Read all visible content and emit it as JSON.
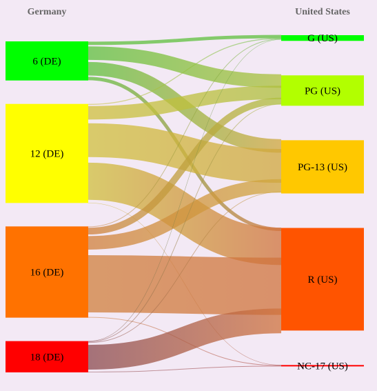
{
  "header": {
    "left": "Germany",
    "right": "United States"
  },
  "chart_data": {
    "type": "sankey",
    "left_nodes": [
      {
        "id": "de6",
        "label": "6 (DE)",
        "color": "#00ff00",
        "value": 15
      },
      {
        "id": "de12",
        "label": "12 (DE)",
        "color": "#ffff00",
        "value": 38
      },
      {
        "id": "de16",
        "label": "16 (DE)",
        "color": "#ff7200",
        "value": 35
      },
      {
        "id": "de18",
        "label": "18 (DE)",
        "color": "#ff0000",
        "value": 12
      }
    ],
    "right_nodes": [
      {
        "id": "g",
        "label": "G (US)",
        "color": "#00ff00",
        "value": 3
      },
      {
        "id": "pg",
        "label": "PG (US)",
        "color": "#b2ff00",
        "value": 16
      },
      {
        "id": "pg13",
        "label": "PG-13 (US)",
        "color": "#ffc800",
        "value": 28
      },
      {
        "id": "r",
        "label": "R (US)",
        "color": "#ff5400",
        "value": 54
      },
      {
        "id": "nc17",
        "label": "NC-17 (US)",
        "color": "#ff0000",
        "value": 0.6
      }
    ],
    "links": [
      {
        "source": "de6",
        "target": "g",
        "value": 1.5
      },
      {
        "source": "de6",
        "target": "pg",
        "value": 6
      },
      {
        "source": "de6",
        "target": "pg13",
        "value": 6
      },
      {
        "source": "de6",
        "target": "r",
        "value": 1.5
      },
      {
        "source": "de12",
        "target": "g",
        "value": 0.4
      },
      {
        "source": "de12",
        "target": "pg",
        "value": 6
      },
      {
        "source": "de12",
        "target": "pg13",
        "value": 15
      },
      {
        "source": "de12",
        "target": "r",
        "value": 16.5
      },
      {
        "source": "de12",
        "target": "nc17",
        "value": 0.1
      },
      {
        "source": "de16",
        "target": "g",
        "value": 0.3
      },
      {
        "source": "de16",
        "target": "pg",
        "value": 3
      },
      {
        "source": "de16",
        "target": "pg13",
        "value": 6
      },
      {
        "source": "de16",
        "target": "r",
        "value": 25.4
      },
      {
        "source": "de16",
        "target": "nc17",
        "value": 0.3
      },
      {
        "source": "de18",
        "target": "g",
        "value": 0.1
      },
      {
        "source": "de18",
        "target": "pg",
        "value": 0.3
      },
      {
        "source": "de18",
        "target": "pg13",
        "value": 0.3
      },
      {
        "source": "de18",
        "target": "r",
        "value": 11
      },
      {
        "source": "de18",
        "target": "nc17",
        "value": 0.3
      }
    ]
  }
}
